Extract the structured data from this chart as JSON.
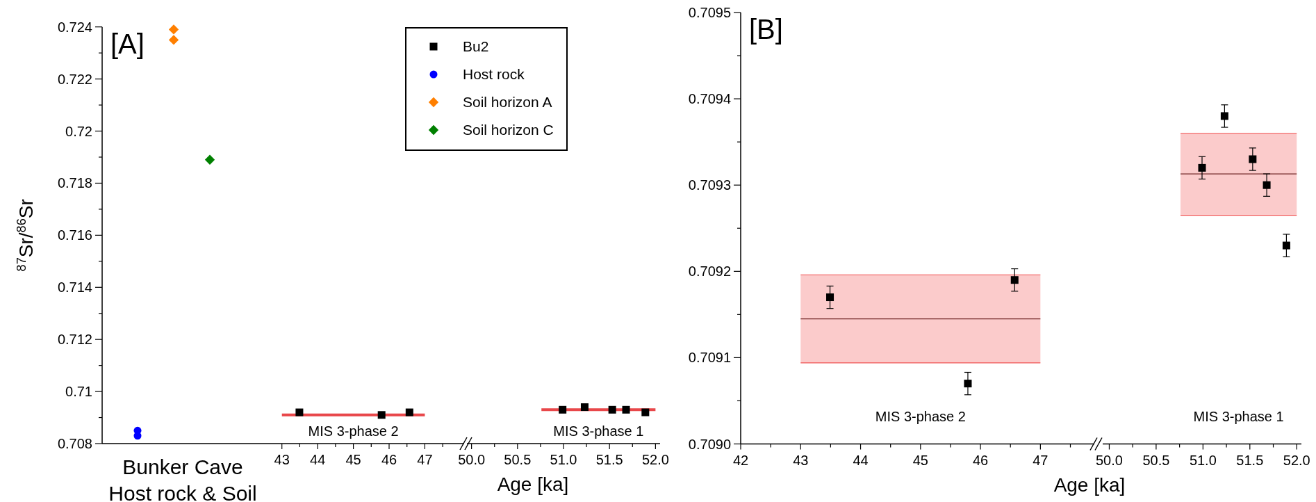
{
  "chart_data": [
    {
      "type": "scatter",
      "title": "[A]",
      "xlabel": "Bunker Cave\nHost rock & Soil",
      "ylabel": "$^{87}$Sr/$^{86}$Sr",
      "categories": [
        null,
        null,
        null,
        null
      ],
      "ylim": [
        0.708,
        0.724
      ],
      "yticks": [
        0.708,
        {
          "value": 0.709,
          "label": null
        },
        0.71,
        {
          "value": 0.711,
          "label": null
        },
        0.712,
        {
          "value": 0.713,
          "label": null
        },
        0.714,
        {
          "value": 0.715,
          "label": null
        },
        0.716,
        {
          "value": 0.717,
          "label": null
        },
        0.718,
        {
          "value": 0.719,
          "label": null
        },
        0.72,
        {
          "value": 0.721,
          "label": null
        },
        0.722,
        {
          "value": 0.723,
          "label": null
        },
        0.724
      ],
      "tick_labels": "y",
      "legend": "top right",
      "series": [
        {
          "name": "Host rock",
          "color": "#0000ff",
          "marker": "circle",
          "values": [
            0.7085,
            null,
            null,
            null
          ]
        },
        {
          "color": "#0000ff",
          "marker": "circle",
          "values": [
            0.7083,
            null,
            null,
            null
          ]
        },
        {
          "name": "Soil horizon A",
          "color": "#ff7f00",
          "marker": "diamond",
          "values": [
            null,
            0.7239,
            null,
            null
          ]
        },
        {
          "color": "#ff7f00",
          "marker": "diamond",
          "values": [
            null,
            0.7235,
            null,
            null
          ]
        },
        {
          "name": "Soil horizon C",
          "color": "#008000",
          "marker": "diamond",
          "values": [
            null,
            null,
            0.7189,
            null
          ]
        }
      ]
    },
    {
      "type": "scatter",
      "xlabel": "Age [ka]",
      "xlim": [
        42.5,
        48.1
      ],
      "xticks": [
        43,
        {
          "value": 43.5,
          "label": null
        },
        44,
        {
          "value": 44.5,
          "label": null
        },
        45,
        {
          "value": 45.5,
          "label": null
        },
        46,
        {
          "value": 46.5,
          "label": null
        },
        47,
        {
          "value": 47.5,
          "label": null
        }
      ],
      "ylim": [
        0.708,
        0.724
      ],
      "tick_labels": "x",
      "annotations": [
        "MIS 3-phase 2"
      ],
      "series": [
        {
          "type": "line",
          "color": "#e8474a",
          "x": [
            43,
            47
          ],
          "values": [
            0.7091,
            0.7091
          ]
        },
        {
          "name": "Bu2",
          "color": "#000000",
          "marker": "square",
          "x": [
            43.49,
            45.79,
            46.57
          ],
          "values": [
            0.7092,
            0.7091,
            0.7092
          ]
        }
      ]
    },
    {
      "type": "scatter",
      "xlim": [
        49.95,
        52.05
      ],
      "xticks": [
        {
          "value": 50,
          "label": "50.0"
        },
        {
          "value": 50.25,
          "label": null
        },
        50.5,
        {
          "value": 50.75,
          "label": null
        },
        {
          "value": 51,
          "label": "51.0"
        },
        {
          "value": 51.25,
          "label": null
        },
        51.5,
        {
          "value": 51.75,
          "label": null
        },
        {
          "value": 52,
          "label": "52.0"
        }
      ],
      "ylim": [
        0.708,
        0.724
      ],
      "tick_labels": "x",
      "annotations": [
        "MIS 3-phase 1"
      ],
      "series": [
        {
          "type": "line",
          "color": "#e8474a",
          "x": [
            50.76,
            52
          ],
          "values": [
            0.7093,
            0.7093
          ]
        },
        {
          "name": "Bu2",
          "color": "#000000",
          "marker": "square",
          "x": [
            50.99,
            51.23,
            51.53,
            51.68,
            51.89
          ],
          "values": [
            0.7093,
            0.7094,
            0.7093,
            0.7093,
            0.7092
          ]
        }
      ]
    },
    {
      "type": "scatter",
      "title": "[B]",
      "xlabel": "Age [ka]",
      "xlim": [
        42,
        47.9
      ],
      "xticks": [
        42,
        {
          "value": 42.5,
          "label": null
        },
        43,
        {
          "value": 43.5,
          "label": null
        },
        44,
        {
          "value": 44.5,
          "label": null
        },
        45,
        {
          "value": 45.5,
          "label": null
        },
        46,
        {
          "value": 46.5,
          "label": null
        },
        47,
        {
          "value": 47.5,
          "label": null
        }
      ],
      "ylim": [
        0.709,
        0.7095
      ],
      "yticks": [
        {
          "value": 0.709,
          "label": "0.7090"
        },
        {
          "value": 0.70905,
          "label": null
        },
        0.7091,
        {
          "value": 0.70915,
          "label": null
        },
        0.7092,
        {
          "value": 0.70925,
          "label": null
        },
        0.7093,
        {
          "value": 0.70935,
          "label": null
        },
        0.7094,
        {
          "value": 0.70945,
          "label": null
        },
        0.7095
      ],
      "annotations": [
        "MIS 3-phase 2"
      ],
      "series": [
        {
          "type": "line",
          "color": "#6e2525",
          "x": [
            43,
            47
          ],
          "values": [
            0.709145,
            0.709145
          ],
          "lower": [
            0.709094,
            0.709094
          ],
          "upper": [
            0.709196,
            0.709196
          ]
        },
        {
          "color": "#000000",
          "marker": "square",
          "x": [
            43.49,
            45.79,
            46.57
          ],
          "values": [
            0.70917,
            0.70907,
            0.70919
          ],
          "errors": [
            1.3e-05,
            1.3e-05,
            1.3e-05
          ]
        },
        {
          "type": "line",
          "color": "#f05050",
          "x": [
            43,
            47
          ],
          "values": [
            0.709196,
            0.709196
          ]
        },
        {
          "type": "line",
          "color": "#f05050",
          "x": [
            43,
            47
          ],
          "values": [
            0.709094,
            0.709094
          ]
        }
      ]
    },
    {
      "type": "scatter",
      "xlim": [
        49.93,
        52.05
      ],
      "xticks": [
        {
          "value": 50,
          "label": "50.0"
        },
        {
          "value": 50.25,
          "label": null
        },
        50.5,
        {
          "value": 50.75,
          "label": null
        },
        {
          "value": 51,
          "label": "51.0"
        },
        {
          "value": 51.25,
          "label": null
        },
        51.5,
        {
          "value": 51.75,
          "label": null
        },
        {
          "value": 52,
          "label": "52.0"
        }
      ],
      "ylim": [
        0.709,
        0.7095
      ],
      "tick_labels": "x",
      "annotations": [
        "MIS 3-phase 1"
      ],
      "series": [
        {
          "type": "line",
          "color": "#6e2525",
          "x": [
            50.76,
            52
          ],
          "values": [
            0.709313,
            0.709313
          ],
          "lower": [
            0.709265,
            0.709265
          ],
          "upper": [
            0.70936,
            0.70936
          ]
        },
        {
          "color": "#000000",
          "marker": "square",
          "x": [
            50.99,
            51.23,
            51.53,
            51.68,
            51.89
          ],
          "values": [
            0.70932,
            0.70938,
            0.70933,
            0.7093,
            0.70923
          ],
          "errors": [
            1.3e-05,
            1.3e-05,
            1.3e-05,
            1.3e-05,
            1.3e-05
          ]
        },
        {
          "type": "line",
          "color": "#f05050",
          "x": [
            50.76,
            52
          ],
          "values": [
            0.70936,
            0.70936
          ]
        },
        {
          "type": "line",
          "color": "#f05050",
          "x": [
            50.76,
            52
          ],
          "values": [
            0.709265,
            0.709265
          ]
        }
      ]
    }
  ]
}
